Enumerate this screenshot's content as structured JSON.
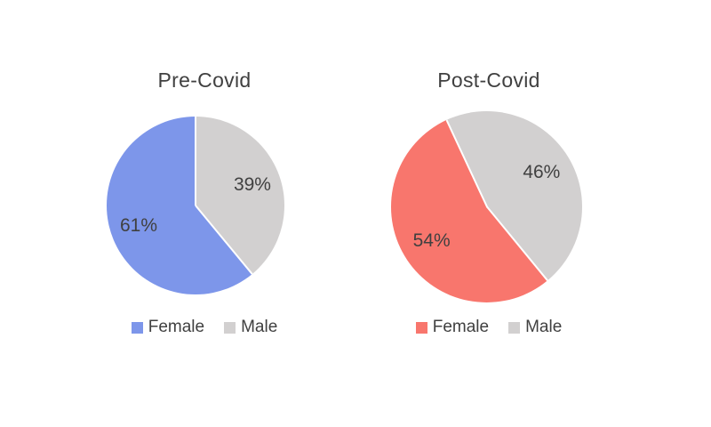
{
  "page": {
    "background_color": "#FFFFFF",
    "text_color": "#404040"
  },
  "chart_data": [
    {
      "type": "pie",
      "title": "Pre-Covid",
      "categories": [
        "Female",
        "Male"
      ],
      "values": [
        61,
        39
      ],
      "value_labels": [
        "61%",
        "39%"
      ],
      "slices_clockwise": [
        {
          "name": "Male",
          "value": 39,
          "label": "39%",
          "color": "#D2D0D0"
        },
        {
          "name": "Female",
          "value": 61,
          "label": "61%",
          "color": "#7D96EA"
        }
      ],
      "start_angle_deg": 0,
      "legend_position": "bottom",
      "legend": [
        {
          "label": "Female",
          "color": "#7D96EA"
        },
        {
          "label": "Male",
          "color": "#D2D0D0"
        }
      ]
    },
    {
      "type": "pie",
      "title": "Post-Covid",
      "categories": [
        "Female",
        "Male"
      ],
      "values": [
        54,
        46
      ],
      "value_labels": [
        "54%",
        "46%"
      ],
      "slices_clockwise": [
        {
          "name": "Male",
          "value": 46,
          "label": "46%",
          "color": "#D2D0D0"
        },
        {
          "name": "Female",
          "value": 54,
          "label": "54%",
          "color": "#F8766D"
        }
      ],
      "start_angle_deg": -25,
      "legend_position": "bottom",
      "legend": [
        {
          "label": "Female",
          "color": "#F8766D"
        },
        {
          "label": "Male",
          "color": "#D2D0D0"
        }
      ]
    }
  ]
}
